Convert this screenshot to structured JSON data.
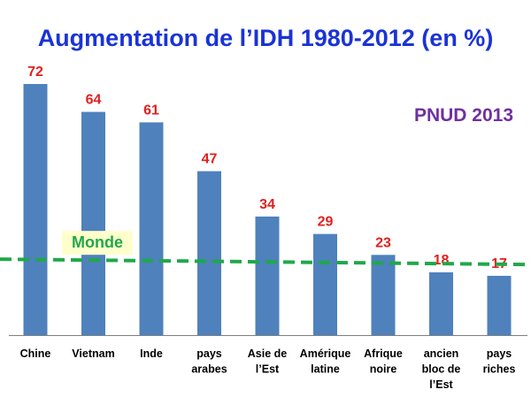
{
  "chart_data": {
    "type": "bar",
    "title": "Augmentation de l’IDH 1980-2012 (en %)",
    "categories": [
      [
        "Chine"
      ],
      [
        "Vietnam"
      ],
      [
        "Inde"
      ],
      [
        "pays",
        "arabes"
      ],
      [
        "Asie de",
        "l’Est"
      ],
      [
        "Amérique",
        "latine"
      ],
      [
        "Afrique",
        "noire"
      ],
      [
        "ancien",
        "bloc de",
        "l’Est"
      ],
      [
        "pays",
        "riches"
      ]
    ],
    "values": [
      72,
      64,
      61,
      47,
      34,
      29,
      23,
      18,
      17
    ],
    "ylim": [
      0,
      72
    ],
    "reference_line": {
      "label": "Monde",
      "value": 21,
      "style": "dashed"
    },
    "annotation": "PNUD 2013",
    "grid": false,
    "legend": "none",
    "colors": {
      "title": "#1a33d6",
      "bar": "#4f81bd",
      "value_label": "#e0201c",
      "reference_line": "#20a84a",
      "reference_label_bg": "#ffffcc",
      "reference_label_text": "#20a84a",
      "annotation": "#7030a0",
      "axis": "#7f7f7f",
      "category_text": "#000000"
    }
  }
}
